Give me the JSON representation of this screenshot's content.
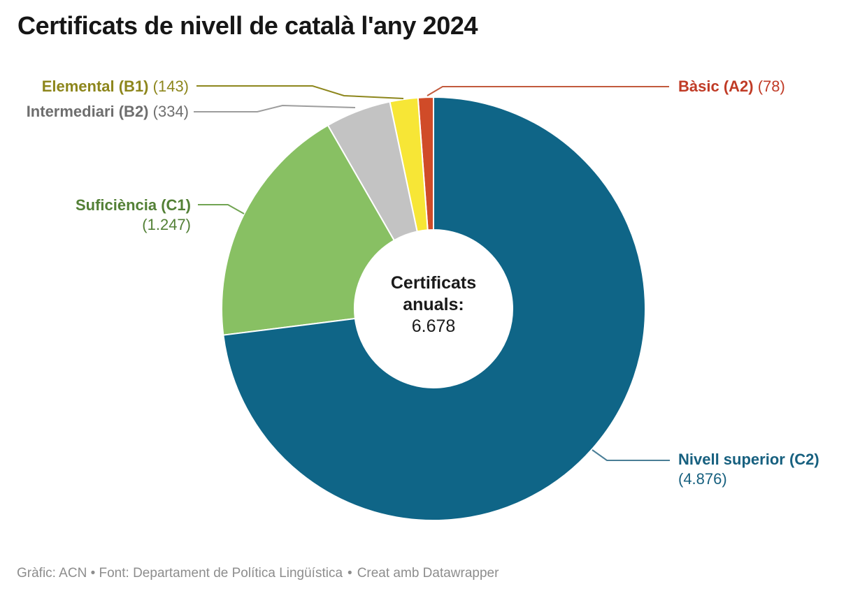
{
  "header": {
    "title": "Certificats de nivell de català l'any 2024"
  },
  "chart_data": {
    "type": "pie",
    "subtype": "donut",
    "title": "Certificats de nivell de català l'any 2024",
    "total": 6678,
    "legend_position": "none",
    "center_label": {
      "heading": "Certificats anuals:",
      "value": "6.678"
    },
    "slices": [
      {
        "id": "c2",
        "label": "Nivell superior (C2)",
        "value": 4876,
        "value_display": "(4.876)",
        "color": "#0f6587",
        "label_color": "#17607f",
        "line_color": "#4a7e96"
      },
      {
        "id": "c1",
        "label": "Suficiència (C1)",
        "value": 1247,
        "value_display": "(1.247)",
        "color": "#88c063",
        "label_color": "#538036",
        "line_color": "#71a452"
      },
      {
        "id": "b2",
        "label": "Intermediari (B2)",
        "value": 334,
        "value_display": "(334)",
        "color": "#c3c3c3",
        "label_color": "#6e6e6e",
        "line_color": "#9d9d9d"
      },
      {
        "id": "b1",
        "label": "Elemental (B1)",
        "value": 143,
        "value_display": "(143)",
        "color": "#f7e636",
        "label_color": "#8d861c",
        "line_color": "#8d861c"
      },
      {
        "id": "a2",
        "label": "Bàsic (A2)",
        "value": 78,
        "value_display": "(78)",
        "color": "#d04b28",
        "label_color": "#c03b26",
        "line_color": "#c25a3d"
      }
    ]
  },
  "footer": {
    "credit": "Gràfic: ACN • Font: Departament de Política Lingüística",
    "separator": "•",
    "created": "Creat amb Datawrapper"
  }
}
